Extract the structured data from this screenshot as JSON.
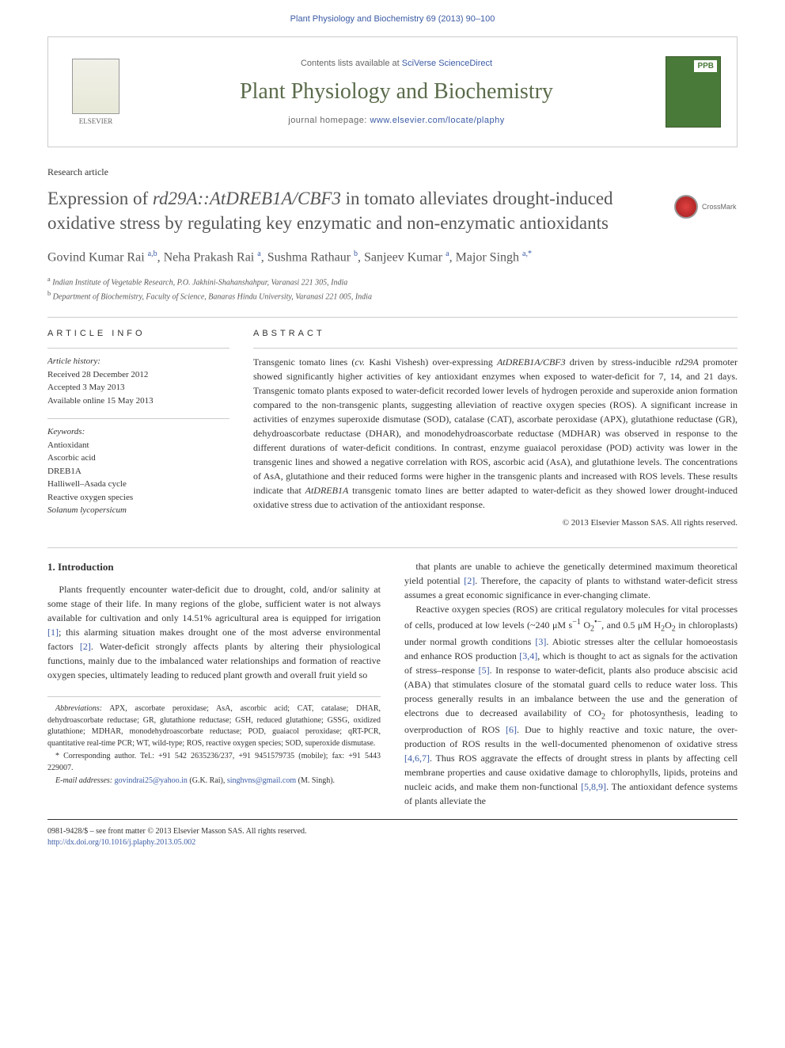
{
  "header": {
    "citation": "Plant Physiology and Biochemistry 69 (2013) 90–100"
  },
  "banner": {
    "contents_prefix": "Contents lists available at ",
    "contents_link": "SciVerse ScienceDirect",
    "journal_name": "Plant Physiology and Biochemistry",
    "homepage_prefix": "journal homepage: ",
    "homepage_url": "www.elsevier.com/locate/plaphy",
    "elsevier_label": "ELSEVIER",
    "cover_badge": "PPB"
  },
  "article": {
    "type": "Research article",
    "title_html": "Expression of <span class='ital'>rd29A::AtDREB1A/CBF3</span> in tomato alleviates drought-induced oxidative stress by regulating key enzymatic and non-enzymatic antioxidants",
    "crossmark": "CrossMark"
  },
  "authors": {
    "line_html": "Govind Kumar Rai <sup>a,b</sup>, Neha Prakash Rai <sup>a</sup>, Sushma Rathaur <sup>b</sup>, Sanjeev Kumar <sup>a</sup>, Major Singh <sup>a,*</sup>"
  },
  "affiliations": {
    "a": "Indian Institute of Vegetable Research, P.O. Jakhini-Shahanshahpur, Varanasi 221 305, India",
    "b": "Department of Biochemistry, Faculty of Science, Banaras Hindu University, Varanasi 221 005, India"
  },
  "article_info": {
    "heading": "ARTICLE INFO",
    "history_label": "Article history:",
    "received": "Received 28 December 2012",
    "accepted": "Accepted 3 May 2013",
    "online": "Available online 15 May 2013",
    "keywords_label": "Keywords:",
    "keywords": [
      "Antioxidant",
      "Ascorbic acid",
      "DREB1A",
      "Halliwell–Asada cycle",
      "Reactive oxygen species",
      "Solanum lycopersicum"
    ]
  },
  "abstract": {
    "heading": "ABSTRACT",
    "text_html": "Transgenic tomato lines (<span class='ital'>cv.</span> Kashi Vishesh) over-expressing <span class='ital'>AtDREB1A/CBF3</span> driven by stress-inducible <span class='ital'>rd29A</span> promoter showed significantly higher activities of key antioxidant enzymes when exposed to water-deficit for 7, 14, and 21 days. Transgenic tomato plants exposed to water-deficit recorded lower levels of hydrogen peroxide and superoxide anion formation compared to the non-transgenic plants, suggesting alleviation of reactive oxygen species (ROS). A significant increase in activities of enzymes superoxide dismutase (SOD), catalase (CAT), ascorbate peroxidase (APX), glutathione reductase (GR), dehydroascorbate reductase (DHAR), and monodehydroascorbate reductase (MDHAR) was observed in response to the different durations of water-deficit conditions. In contrast, enzyme guaiacol peroxidase (POD) activity was lower in the transgenic lines and showed a negative correlation with ROS, ascorbic acid (AsA), and glutathione levels. The concentrations of AsA, glutathione and their reduced forms were higher in the transgenic plants and increased with ROS levels. These results indicate that <span class='ital'>AtDREB1A</span> transgenic tomato lines are better adapted to water-deficit as they showed lower drought-induced oxidative stress due to activation of the antioxidant response.",
    "copyright": "© 2013 Elsevier Masson SAS. All rights reserved."
  },
  "body": {
    "intro_heading": "1. Introduction",
    "col1_p1_html": "Plants frequently encounter water-deficit due to drought, cold, and/or salinity at some stage of their life. In many regions of the globe, sufficient water is not always available for cultivation and only 14.51% agricultural area is equipped for irrigation <span class='ref'>[1]</span>; this alarming situation makes drought one of the most adverse environmental factors <span class='ref'>[2]</span>. Water-deficit strongly affects plants by altering their physiological functions, mainly due to the imbalanced water relationships and formation of reactive oxygen species, ultimately leading to reduced plant growth and overall fruit yield so",
    "col2_p1_html": "that plants are unable to achieve the genetically determined maximum theoretical yield potential <span class='ref'>[2]</span>. Therefore, the capacity of plants to withstand water-deficit stress assumes a great economic significance in ever-changing climate.",
    "col2_p2_html": "Reactive oxygen species (ROS) are critical regulatory molecules for vital processes of cells, produced at low levels (~240 μM s<sup>−1</sup> O<sub>2</sub><sup>•−</sup>, and 0.5 μM H<sub>2</sub>O<sub>2</sub> in chloroplasts) under normal growth conditions <span class='ref'>[3]</span>. Abiotic stresses alter the cellular homoeostasis and enhance ROS production <span class='ref'>[3,4]</span>, which is thought to act as signals for the activation of stress–response <span class='ref'>[5]</span>. In response to water-deficit, plants also produce abscisic acid (ABA) that stimulates closure of the stomatal guard cells to reduce water loss. This process generally results in an imbalance between the use and the generation of electrons due to decreased availability of CO<sub>2</sub> for photosynthesis, leading to overproduction of ROS <span class='ref'>[6]</span>. Due to highly reactive and toxic nature, the over-production of ROS results in the well-documented phenomenon of oxidative stress <span class='ref'>[4,6,7]</span>. Thus ROS aggravate the effects of drought stress in plants by affecting cell membrane properties and cause oxidative damage to chlorophylls, lipids, proteins and nucleic acids, and make them non-functional <span class='ref'>[5,8,9]</span>. The antioxidant defence systems of plants alleviate the"
  },
  "footnotes": {
    "abbrev_html": "<span class='ital'>Abbreviations:</span> APX, ascorbate peroxidase; AsA, ascorbic acid; CAT, catalase; DHAR, dehydroascorbate reductase; GR, glutathione reductase; GSH, reduced glutathione; GSSG, oxidized glutathione; MDHAR, monodehydroascorbate reductase; POD, guaiacol peroxidase; qRT-PCR, quantitative real-time PCR; WT, wild-type; ROS, reactive oxygen species; SOD, superoxide dismutase.",
    "corr_html": "* Corresponding author. Tel.: +91 542 2635236/237, +91 9451579735 (mobile); fax: +91 5443 229007.",
    "email_html": "<span class='ital'>E-mail addresses:</span> <span class='ref'>govindrai25@yahoo.in</span> (G.K. Rai), <span class='ref'>singhvns@gmail.com</span> (M. Singh)."
  },
  "doi": {
    "issn": "0981-9428/$ – see front matter © 2013 Elsevier Masson SAS. All rights reserved.",
    "url": "http://dx.doi.org/10.1016/j.plaphy.2013.05.002"
  },
  "colors": {
    "link": "#3b5ba5",
    "journal_green": "#5a6b4a",
    "cover_green": "#4a7a3a",
    "text": "#333333",
    "heading_gray": "#575757",
    "rule": "#cccccc"
  },
  "typography": {
    "base_family": "Georgia, Times New Roman, serif",
    "sans_family": "Arial, sans-serif",
    "title_fontsize": 23,
    "journal_fontsize": 28,
    "body_fontsize": 12,
    "footnote_fontsize": 10
  }
}
